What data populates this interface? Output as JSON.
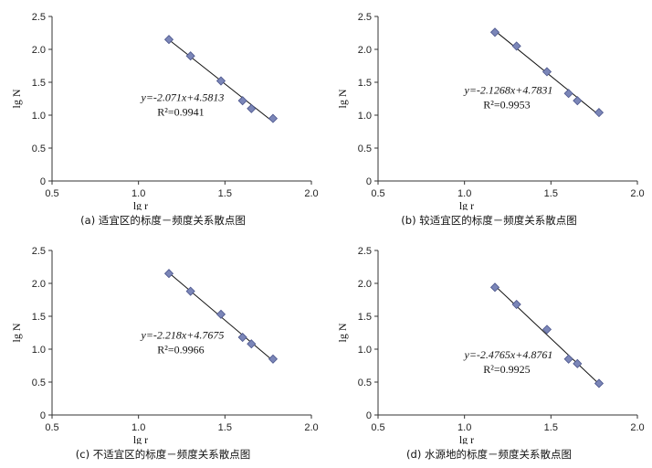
{
  "chart_data": [
    {
      "type": "scatter",
      "caption": "(a)  适宜区的标度－频度关系散点图",
      "xlabel": "lg r",
      "ylabel": "lg N",
      "xlim": [
        0.5,
        2.0
      ],
      "ylim": [
        0,
        2.5
      ],
      "xticks": [
        "0.5",
        "1.0",
        "1.5",
        "2.0"
      ],
      "yticks": [
        "0",
        "0.5",
        "1.0",
        "1.5",
        "2.0",
        "2.5"
      ],
      "points": [
        [
          1.176,
          2.15
        ],
        [
          1.301,
          1.9
        ],
        [
          1.477,
          1.52
        ],
        [
          1.602,
          1.22
        ],
        [
          1.653,
          1.1
        ],
        [
          1.778,
          0.95
        ]
      ],
      "fit": {
        "slope": -2.071,
        "intercept": 4.5813
      },
      "equation": "y=-2.071x+4.5813",
      "r2": "R²=0.9941",
      "grid": false
    },
    {
      "type": "scatter",
      "caption": "(b)  较适宜区的标度－频度关系散点图",
      "xlabel": "lg r",
      "ylabel": "lg N",
      "xlim": [
        0.5,
        2.0
      ],
      "ylim": [
        0,
        2.5
      ],
      "xticks": [
        "0.5",
        "1.0",
        "1.5",
        "2.0"
      ],
      "yticks": [
        "0",
        "0.5",
        "1.0",
        "1.5",
        "2.0",
        "2.5"
      ],
      "points": [
        [
          1.176,
          2.26
        ],
        [
          1.301,
          2.05
        ],
        [
          1.477,
          1.66
        ],
        [
          1.602,
          1.33
        ],
        [
          1.653,
          1.22
        ],
        [
          1.778,
          1.04
        ]
      ],
      "fit": {
        "slope": -2.1268,
        "intercept": 4.7831
      },
      "equation": "y=-2.1268x+4.7831",
      "r2": "R²=0.9953",
      "grid": false
    },
    {
      "type": "scatter",
      "caption": "(c)  不适宜区的标度－频度关系散点图",
      "xlabel": "lg r",
      "ylabel": "lg N",
      "xlim": [
        0.5,
        2.0
      ],
      "ylim": [
        0,
        2.5
      ],
      "xticks": [
        "0.5",
        "1.0",
        "1.5",
        "2.0"
      ],
      "yticks": [
        "0",
        "0.5",
        "1.0",
        "1.5",
        "2.0",
        "2.5"
      ],
      "points": [
        [
          1.176,
          2.15
        ],
        [
          1.301,
          1.88
        ],
        [
          1.477,
          1.53
        ],
        [
          1.602,
          1.18
        ],
        [
          1.653,
          1.08
        ],
        [
          1.778,
          0.85
        ]
      ],
      "fit": {
        "slope": -2.218,
        "intercept": 4.7675
      },
      "equation": "y=-2.218x+4.7675",
      "r2": "R²=0.9966",
      "grid": false
    },
    {
      "type": "scatter",
      "caption": "(d)  水源地的标度－频度关系散点图",
      "xlabel": "lg r",
      "ylabel": "lg N",
      "xlim": [
        0.5,
        2.0
      ],
      "ylim": [
        0,
        2.5
      ],
      "xticks": [
        "0.5",
        "1.0",
        "1.5",
        "2.0"
      ],
      "yticks": [
        "0",
        "0.5",
        "1.0",
        "1.5",
        "2.0",
        "2.5"
      ],
      "points": [
        [
          1.176,
          1.94
        ],
        [
          1.301,
          1.68
        ],
        [
          1.477,
          1.3
        ],
        [
          1.602,
          0.85
        ],
        [
          1.653,
          0.78
        ],
        [
          1.778,
          0.48
        ]
      ],
      "fit": {
        "slope": -2.4765,
        "intercept": 4.8761
      },
      "equation": "y=-2.4765x+4.8761",
      "r2": "R²=0.9925",
      "grid": false
    }
  ],
  "colors": {
    "marker_fill": "#7b86b8",
    "marker_stroke": "#4b558c",
    "line": "#111111",
    "axis": "#333333"
  }
}
